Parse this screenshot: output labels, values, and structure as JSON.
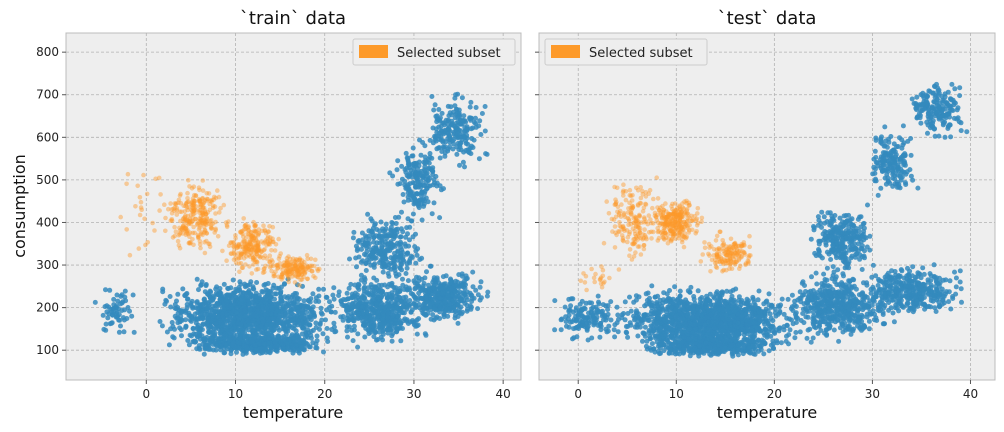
{
  "colors": {
    "series_all": "#348abd",
    "series_subset": "#fd9a2a",
    "panel_bg": "#eeeeee",
    "grid": "#b2b2b2",
    "panel_border": "#bcbcbc"
  },
  "chart_data": [
    {
      "type": "scatter",
      "title": "`train` data",
      "xlabel": "temperature",
      "ylabel": "consumption",
      "xlim": [
        -9,
        42
      ],
      "ylim": [
        30,
        845
      ],
      "xticks": [
        0,
        10,
        20,
        30,
        40
      ],
      "yticks": [
        100,
        200,
        300,
        400,
        500,
        600,
        700,
        800
      ],
      "grid": true,
      "legend": {
        "position": "top-right",
        "entries": [
          "Selected subset"
        ]
      },
      "clusters": [
        {
          "series": "all",
          "x": [
            -7,
            0
          ],
          "y": [
            120,
            260
          ],
          "n": 60
        },
        {
          "series": "all",
          "x": [
            0,
            23
          ],
          "y": [
            85,
            280
          ],
          "n": 1300
        },
        {
          "series": "all",
          "x": [
            3,
            22
          ],
          "y": [
            85,
            140
          ],
          "n": 400
        },
        {
          "series": "all",
          "x": [
            20,
            32
          ],
          "y": [
            100,
            290
          ],
          "n": 520
        },
        {
          "series": "all",
          "x": [
            28,
            39
          ],
          "y": [
            150,
            300
          ],
          "n": 380
        },
        {
          "series": "all",
          "x": [
            22,
            32
          ],
          "y": [
            240,
            440
          ],
          "n": 260
        },
        {
          "series": "all",
          "x": [
            27,
            34
          ],
          "y": [
            380,
            600
          ],
          "n": 180
        },
        {
          "series": "all",
          "x": [
            30,
            39
          ],
          "y": [
            520,
            720
          ],
          "n": 200
        },
        {
          "series": "subset",
          "x": [
            -4,
            3
          ],
          "y": [
            260,
            610
          ],
          "n": 24
        },
        {
          "series": "subset",
          "x": [
            1,
            10
          ],
          "y": [
            310,
            520
          ],
          "n": 260
        },
        {
          "series": "subset",
          "x": [
            8,
            16
          ],
          "y": [
            270,
            420
          ],
          "n": 230
        },
        {
          "series": "subset",
          "x": [
            13,
            20
          ],
          "y": [
            250,
            330
          ],
          "n": 160
        }
      ]
    },
    {
      "type": "scatter",
      "title": "`test` data",
      "xlabel": "temperature",
      "ylabel": "",
      "xlim": [
        -4,
        42.5
      ],
      "ylim": [
        30,
        845
      ],
      "xticks": [
        0,
        10,
        20,
        30,
        40
      ],
      "yticks": [
        100,
        200,
        300,
        400,
        500,
        600,
        700,
        800
      ],
      "grid": true,
      "legend": {
        "position": "top-left",
        "entries": [
          "Selected subset"
        ]
      },
      "clusters": [
        {
          "series": "all",
          "x": [
            -3,
            5
          ],
          "y": [
            110,
            240
          ],
          "n": 140
        },
        {
          "series": "all",
          "x": [
            2,
            25
          ],
          "y": [
            80,
            260
          ],
          "n": 1300
        },
        {
          "series": "all",
          "x": [
            5,
            22
          ],
          "y": [
            80,
            140
          ],
          "n": 400
        },
        {
          "series": "all",
          "x": [
            20,
            33
          ],
          "y": [
            110,
            300
          ],
          "n": 500
        },
        {
          "series": "all",
          "x": [
            28,
            40
          ],
          "y": [
            170,
            310
          ],
          "n": 360
        },
        {
          "series": "all",
          "x": [
            23,
            31
          ],
          "y": [
            260,
            460
          ],
          "n": 260
        },
        {
          "series": "all",
          "x": [
            29,
            35
          ],
          "y": [
            440,
            640
          ],
          "n": 160
        },
        {
          "series": "all",
          "x": [
            33,
            40
          ],
          "y": [
            580,
            760
          ],
          "n": 180
        },
        {
          "series": "subset",
          "x": [
            0,
            4
          ],
          "y": [
            230,
            300
          ],
          "n": 20
        },
        {
          "series": "subset",
          "x": [
            2,
            9
          ],
          "y": [
            280,
            530
          ],
          "n": 170
        },
        {
          "series": "subset",
          "x": [
            7,
            13
          ],
          "y": [
            330,
            470
          ],
          "n": 260
        },
        {
          "series": "subset",
          "x": [
            12,
            19
          ],
          "y": [
            270,
            380
          ],
          "n": 150
        }
      ]
    }
  ]
}
